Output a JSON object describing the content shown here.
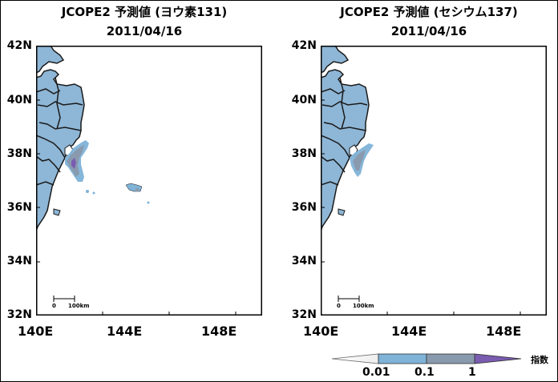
{
  "colors": {
    "land": "#8eb6d6",
    "border": "#1a1a1a",
    "low": "#7fb3d8",
    "mid": "#8a9aae",
    "high": "#7a5cb0"
  },
  "maps": [
    {
      "title": "JCOPE2 予測値 (ヨウ素131)",
      "date": "2011/04/16",
      "y_ticks": [
        "42N",
        "40N",
        "38N",
        "36N",
        "34N",
        "32N"
      ],
      "x_ticks": [
        "140E",
        "144E",
        "148E"
      ],
      "scale_zero": "0",
      "scale_label": "100km"
    },
    {
      "title": "JCOPE2 予測値 (セシウム137)",
      "date": "2011/04/16",
      "y_ticks": [
        "42N",
        "40N",
        "38N",
        "36N",
        "34N",
        "32N"
      ],
      "x_ticks": [
        "140E",
        "144E",
        "148E"
      ],
      "scale_zero": "0",
      "scale_label": "100km"
    }
  ],
  "colorbar": {
    "label": "指数",
    "ticks": [
      "0.01",
      "0.1",
      "1"
    ]
  }
}
